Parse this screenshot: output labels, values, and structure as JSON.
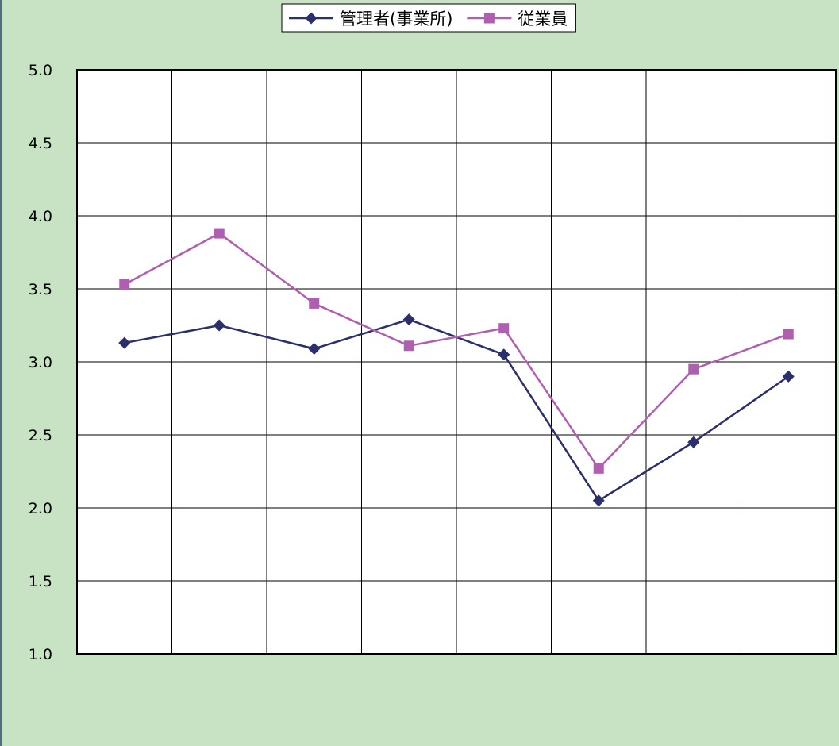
{
  "chart_data": {
    "type": "line",
    "title": "",
    "xlabel": "",
    "ylabel": "",
    "categories": [
      "",
      "",
      "",
      "",
      "",
      "",
      "",
      ""
    ],
    "ylim": [
      1.0,
      5.0
    ],
    "y_ticks": [
      "1.0",
      "1.5",
      "2.0",
      "2.5",
      "3.0",
      "3.5",
      "4.0",
      "4.5",
      "5.0"
    ],
    "y_tick_values": [
      1.0,
      1.5,
      2.0,
      2.5,
      3.0,
      3.5,
      4.0,
      4.5,
      5.0
    ],
    "grid": true,
    "legend_position": "top-center",
    "series": [
      {
        "name": "管理者(事業所)",
        "color": "#2b2f6b",
        "marker": "diamond",
        "values": [
          3.13,
          3.25,
          3.09,
          3.29,
          3.05,
          2.05,
          2.45,
          2.9
        ]
      },
      {
        "name": "従業員",
        "color": "#b05fb0",
        "marker": "square",
        "values": [
          3.53,
          3.88,
          3.4,
          3.11,
          3.23,
          2.27,
          2.95,
          3.19
        ]
      }
    ]
  }
}
